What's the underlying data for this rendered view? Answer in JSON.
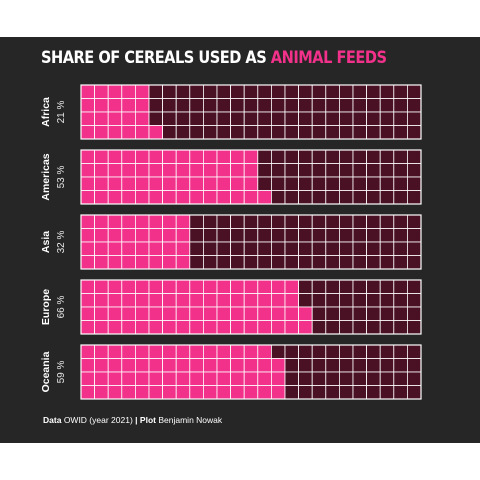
{
  "title": {
    "prefix": "SHARE OF CEREALS USED AS",
    "highlight": "ANIMAL FEEDS"
  },
  "caption": {
    "data_label": "Data",
    "data_text": "OWID (year 2021)",
    "separator": "|",
    "plot_label": "Plot",
    "plot_text": "Benjamin Nowak"
  },
  "colors": {
    "background": "#262626",
    "filled": "#f2318a",
    "empty": "#4a1125",
    "grid": "#ffffff"
  },
  "chart_data": {
    "type": "waffle",
    "grid_columns": 25,
    "grid_rows": 4,
    "unit": "%",
    "categories": [
      "Africa",
      "Americas",
      "Asia",
      "Europe",
      "Oceania"
    ],
    "values": [
      21,
      53,
      32,
      66,
      59
    ],
    "value_labels": [
      "21 %",
      "53 %",
      "32 %",
      "66 %",
      "59 %"
    ]
  }
}
